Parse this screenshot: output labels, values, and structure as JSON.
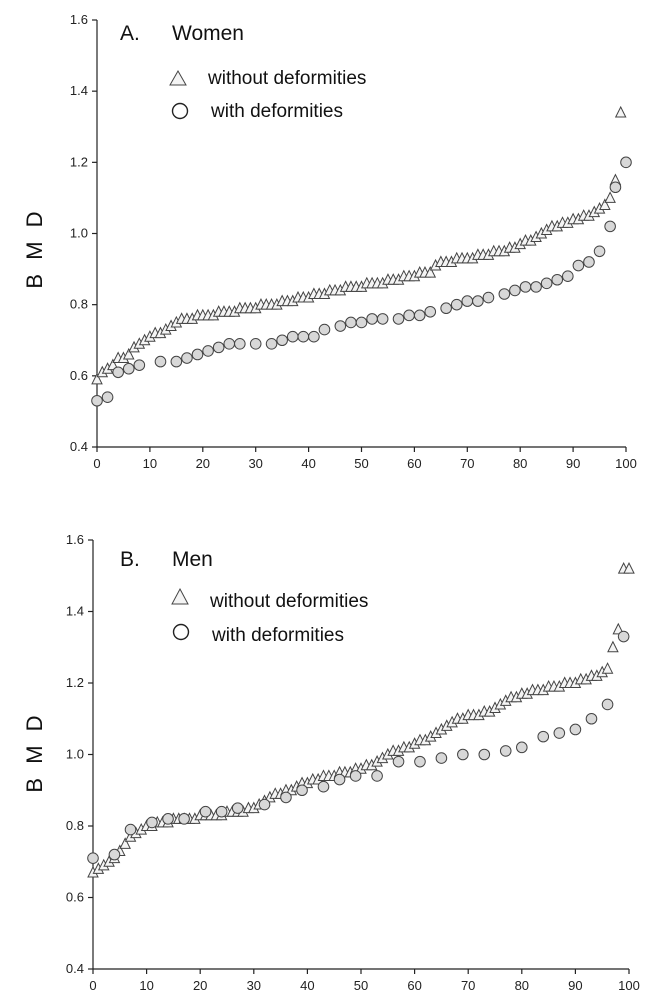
{
  "chart_data": [
    {
      "type": "scatter",
      "title": "A.",
      "subtitle": "Women",
      "ylabel": "B M D",
      "xlabel": "",
      "xlim": [
        0,
        100
      ],
      "ylim": [
        0.4,
        1.6
      ],
      "xticks": [
        "0",
        "10",
        "20",
        "30",
        "40",
        "50",
        "60",
        "70",
        "80",
        "90",
        "100"
      ],
      "yticks": [
        "0.4",
        "0.6",
        "0.8",
        "1.0",
        "1.2",
        "1.4",
        "1.6"
      ],
      "legend_location": "top-left",
      "series": [
        {
          "name": "without deformities",
          "marker": "triangle",
          "x": [
            0,
            1,
            2,
            3,
            4,
            5,
            6,
            7,
            8,
            9,
            10,
            11,
            12,
            13,
            14,
            15,
            16,
            17,
            18,
            19,
            20,
            21,
            22,
            23,
            24,
            25,
            26,
            27,
            28,
            29,
            30,
            31,
            32,
            33,
            34,
            35,
            36,
            37,
            38,
            39,
            40,
            41,
            42,
            43,
            44,
            45,
            46,
            47,
            48,
            49,
            50,
            51,
            52,
            53,
            54,
            55,
            56,
            57,
            58,
            59,
            60,
            61,
            62,
            63,
            64,
            65,
            66,
            67,
            68,
            69,
            70,
            71,
            72,
            73,
            74,
            75,
            76,
            77,
            78,
            79,
            80,
            81,
            82,
            83,
            84,
            85,
            86,
            87,
            88,
            89,
            90,
            91,
            92,
            93,
            94,
            95,
            96,
            97,
            98,
            99
          ],
          "y": [
            0.59,
            0.61,
            0.62,
            0.63,
            0.65,
            0.65,
            0.66,
            0.68,
            0.69,
            0.7,
            0.71,
            0.72,
            0.72,
            0.73,
            0.74,
            0.75,
            0.76,
            0.76,
            0.76,
            0.77,
            0.77,
            0.77,
            0.77,
            0.78,
            0.78,
            0.78,
            0.78,
            0.79,
            0.79,
            0.79,
            0.79,
            0.8,
            0.8,
            0.8,
            0.8,
            0.81,
            0.81,
            0.81,
            0.82,
            0.82,
            0.82,
            0.83,
            0.83,
            0.83,
            0.84,
            0.84,
            0.84,
            0.85,
            0.85,
            0.85,
            0.85,
            0.86,
            0.86,
            0.86,
            0.86,
            0.87,
            0.87,
            0.87,
            0.88,
            0.88,
            0.88,
            0.89,
            0.89,
            0.89,
            0.91,
            0.92,
            0.92,
            0.92,
            0.93,
            0.93,
            0.93,
            0.93,
            0.94,
            0.94,
            0.94,
            0.95,
            0.95,
            0.95,
            0.96,
            0.96,
            0.97,
            0.98,
            0.98,
            0.99,
            1.0,
            1.01,
            1.02,
            1.02,
            1.03,
            1.03,
            1.04,
            1.04,
            1.05,
            1.05,
            1.06,
            1.07,
            1.08,
            1.1,
            1.15,
            1.34
          ]
        },
        {
          "name": "with deformities",
          "marker": "circle",
          "x": [
            0,
            2,
            4,
            6,
            8,
            12,
            15,
            17,
            19,
            21,
            23,
            25,
            27,
            30,
            33,
            35,
            37,
            39,
            41,
            43,
            46,
            48,
            50,
            52,
            54,
            57,
            59,
            61,
            63,
            66,
            68,
            70,
            72,
            74,
            77,
            79,
            81,
            83,
            85,
            87,
            89,
            91,
            93,
            95,
            97,
            98,
            100
          ],
          "y": [
            0.53,
            0.54,
            0.61,
            0.62,
            0.63,
            0.64,
            0.64,
            0.65,
            0.66,
            0.67,
            0.68,
            0.69,
            0.69,
            0.69,
            0.69,
            0.7,
            0.71,
            0.71,
            0.71,
            0.73,
            0.74,
            0.75,
            0.75,
            0.76,
            0.76,
            0.76,
            0.77,
            0.77,
            0.78,
            0.79,
            0.8,
            0.81,
            0.81,
            0.82,
            0.83,
            0.84,
            0.85,
            0.85,
            0.86,
            0.87,
            0.88,
            0.91,
            0.92,
            0.95,
            1.02,
            1.13,
            1.2
          ]
        }
      ]
    },
    {
      "type": "scatter",
      "title": "B.",
      "subtitle": "Men",
      "ylabel": "B M D",
      "xlabel": "",
      "xlim": [
        0,
        100
      ],
      "ylim": [
        0.4,
        1.6
      ],
      "xticks": [
        "0",
        "10",
        "20",
        "30",
        "40",
        "50",
        "60",
        "70",
        "80",
        "90",
        "100"
      ],
      "yticks": [
        "0.4",
        "0.6",
        "0.8",
        "1.0",
        "1.2",
        "1.4",
        "1.6"
      ],
      "legend_location": "top-left",
      "series": [
        {
          "name": "without deformities",
          "marker": "triangle",
          "x": [
            0,
            1,
            2,
            3,
            4,
            5,
            6,
            7,
            8,
            9,
            10,
            11,
            12,
            13,
            14,
            15,
            16,
            17,
            18,
            19,
            20,
            21,
            22,
            23,
            24,
            25,
            26,
            27,
            28,
            29,
            30,
            31,
            32,
            33,
            34,
            35,
            36,
            37,
            38,
            39,
            40,
            41,
            42,
            43,
            44,
            45,
            46,
            47,
            48,
            49,
            50,
            51,
            52,
            53,
            54,
            55,
            56,
            57,
            58,
            59,
            60,
            61,
            62,
            63,
            64,
            65,
            66,
            67,
            68,
            69,
            70,
            71,
            72,
            73,
            74,
            75,
            76,
            77,
            78,
            79,
            80,
            81,
            82,
            83,
            84,
            85,
            86,
            87,
            88,
            89,
            90,
            91,
            92,
            93,
            94,
            95,
            96,
            97,
            98,
            99,
            100
          ],
          "y": [
            0.67,
            0.68,
            0.69,
            0.7,
            0.71,
            0.73,
            0.75,
            0.77,
            0.78,
            0.79,
            0.8,
            0.8,
            0.81,
            0.81,
            0.81,
            0.82,
            0.82,
            0.82,
            0.82,
            0.82,
            0.83,
            0.83,
            0.83,
            0.83,
            0.83,
            0.84,
            0.84,
            0.84,
            0.84,
            0.85,
            0.85,
            0.86,
            0.87,
            0.88,
            0.89,
            0.89,
            0.9,
            0.9,
            0.91,
            0.92,
            0.92,
            0.93,
            0.93,
            0.94,
            0.94,
            0.94,
            0.95,
            0.95,
            0.95,
            0.96,
            0.96,
            0.97,
            0.97,
            0.98,
            0.99,
            1.0,
            1.01,
            1.01,
            1.02,
            1.02,
            1.03,
            1.04,
            1.04,
            1.05,
            1.06,
            1.07,
            1.08,
            1.09,
            1.1,
            1.1,
            1.11,
            1.11,
            1.11,
            1.12,
            1.12,
            1.13,
            1.14,
            1.15,
            1.16,
            1.16,
            1.17,
            1.17,
            1.18,
            1.18,
            1.18,
            1.19,
            1.19,
            1.19,
            1.2,
            1.2,
            1.2,
            1.21,
            1.21,
            1.22,
            1.22,
            1.23,
            1.24,
            1.3,
            1.35,
            1.52,
            1.52
          ]
        },
        {
          "name": "with deformities",
          "marker": "circle",
          "x": [
            0,
            4,
            7,
            11,
            14,
            17,
            21,
            24,
            27,
            32,
            36,
            39,
            43,
            46,
            49,
            53,
            57,
            61,
            65,
            69,
            73,
            77,
            80,
            84,
            87,
            90,
            93,
            96,
            99
          ],
          "y": [
            0.71,
            0.72,
            0.79,
            0.81,
            0.82,
            0.82,
            0.84,
            0.84,
            0.85,
            0.86,
            0.88,
            0.9,
            0.91,
            0.93,
            0.94,
            0.94,
            0.98,
            0.98,
            0.99,
            1.0,
            1.0,
            1.01,
            1.02,
            1.05,
            1.06,
            1.07,
            1.1,
            1.14,
            1.33
          ]
        }
      ]
    }
  ]
}
